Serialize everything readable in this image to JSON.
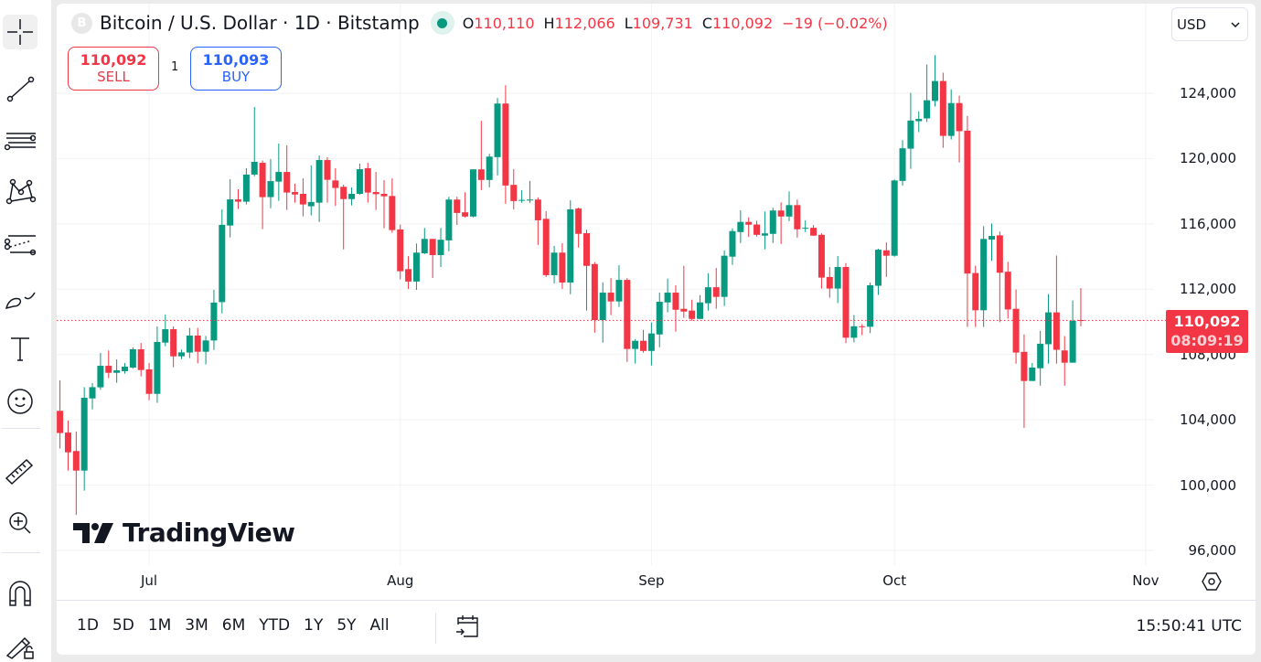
{
  "header": {
    "symbol_icon_letter": "B",
    "title": "Bitcoin / U.S. Dollar · 1D · Bitstamp",
    "ohlc": {
      "o_label": "O",
      "o": "110,110",
      "h_label": "H",
      "h": "112,066",
      "l_label": "L",
      "l": "109,731",
      "c_label": "C",
      "c": "110,092",
      "change": "−19 (−0.02%)"
    }
  },
  "trade": {
    "sell_price": "110,092",
    "sell_label": "SELL",
    "spread": "1",
    "buy_price": "110,093",
    "buy_label": "BUY"
  },
  "currency": {
    "selected": "USD"
  },
  "last_price": {
    "price": "110,092",
    "countdown": "08:09:19"
  },
  "logo_text": "TradingView",
  "toolbar": {
    "tools": [
      "crosshair-icon",
      "trend-line-icon",
      "fib-retracement-icon",
      "pattern-icon",
      "parallel-channel-icon",
      "brush-icon",
      "text-icon",
      "emoji-icon",
      "ruler-icon",
      "zoom-in-icon",
      "magnet-icon",
      "lock-drawings-icon"
    ]
  },
  "bottom_bar": {
    "ranges": [
      "1D",
      "5D",
      "1M",
      "3M",
      "6M",
      "YTD",
      "1Y",
      "5Y",
      "All"
    ],
    "clock": "15:50:41 UTC"
  },
  "colors": {
    "up": "#089981",
    "down": "#f23645",
    "buy": "#2962ff"
  },
  "chart_data": {
    "type": "candlestick",
    "title": "Bitcoin / U.S. Dollar · 1D · Bitstamp",
    "grid": true,
    "ylim": [
      95100,
      129500
    ],
    "y_ticks": [
      {
        "v": 124000,
        "label": "124,000"
      },
      {
        "v": 120000,
        "label": "120,000"
      },
      {
        "v": 116000,
        "label": "116,000"
      },
      {
        "v": 112000,
        "label": "112,000"
      },
      {
        "v": 108000,
        "label": "108,000"
      },
      {
        "v": 104000,
        "label": "104,000"
      },
      {
        "v": 100000,
        "label": "100,000"
      },
      {
        "v": 96000,
        "label": "96,000"
      }
    ],
    "x_ticks": [
      {
        "date": "07-01",
        "label": "Jul"
      },
      {
        "date": "08-01",
        "label": "Aug"
      },
      {
        "date": "09-01",
        "label": "Sep"
      },
      {
        "date": "10-01",
        "label": "Oct"
      },
      {
        "date": "11-01",
        "label": "Nov"
      }
    ],
    "last_price": 110092,
    "columns": [
      "date",
      "open",
      "high",
      "low",
      "close"
    ],
    "candles": [
      [
        "06-20",
        104550,
        106420,
        102240,
        103190
      ],
      [
        "06-21",
        103220,
        103950,
        100890,
        102010
      ],
      [
        "06-22",
        102090,
        103280,
        98170,
        100890
      ],
      [
        "06-23",
        100890,
        106000,
        99660,
        105350
      ],
      [
        "06-24",
        105310,
        106250,
        104640,
        106000
      ],
      [
        "06-25",
        105990,
        108100,
        105840,
        107310
      ],
      [
        "06-26",
        107310,
        108250,
        106550,
        106880
      ],
      [
        "06-27",
        106880,
        107700,
        106270,
        107030
      ],
      [
        "06-28",
        106980,
        107480,
        106830,
        107260
      ],
      [
        "06-29",
        107200,
        108430,
        107140,
        108320
      ],
      [
        "06-30",
        108320,
        108710,
        106660,
        107050
      ],
      [
        "07-01",
        107090,
        107480,
        105200,
        105590
      ],
      [
        "07-02",
        105590,
        109720,
        105040,
        108770
      ],
      [
        "07-03",
        108730,
        110450,
        108510,
        109550
      ],
      [
        "07-04",
        109550,
        109720,
        107220,
        107890
      ],
      [
        "07-05",
        107890,
        108300,
        107720,
        108130
      ],
      [
        "07-06",
        108120,
        109630,
        107780,
        109160
      ],
      [
        "07-07",
        109160,
        109630,
        107460,
        108170
      ],
      [
        "07-08",
        108170,
        109140,
        107390,
        108860
      ],
      [
        "07-09",
        108860,
        111960,
        108280,
        111180
      ],
      [
        "07-10",
        111210,
        116890,
        110520,
        115940
      ],
      [
        "07-11",
        115900,
        118740,
        115170,
        117500
      ],
      [
        "07-12",
        117500,
        118120,
        116910,
        117360
      ],
      [
        "07-13",
        117360,
        119410,
        117190,
        119020
      ],
      [
        "07-14",
        119020,
        123160,
        118920,
        119800
      ],
      [
        "07-15",
        119740,
        119880,
        115680,
        117640
      ],
      [
        "07-16",
        117640,
        119970,
        116960,
        118620
      ],
      [
        "07-17",
        118590,
        120920,
        117410,
        119180
      ],
      [
        "07-18",
        119180,
        120810,
        116850,
        117920
      ],
      [
        "07-19",
        117950,
        118460,
        117300,
        117800
      ],
      [
        "07-20",
        117840,
        118790,
        116460,
        117190
      ],
      [
        "07-21",
        117080,
        119580,
        116520,
        117340
      ],
      [
        "07-22",
        117300,
        120190,
        116120,
        119910
      ],
      [
        "07-23",
        119910,
        120080,
        117300,
        118700
      ],
      [
        "07-24",
        118660,
        119410,
        117110,
        118200
      ],
      [
        "07-25",
        118270,
        118400,
        114440,
        117520
      ],
      [
        "07-26",
        117520,
        118230,
        117130,
        117840
      ],
      [
        "07-27",
        117840,
        119690,
        117780,
        119350
      ],
      [
        "07-28",
        119410,
        119740,
        117300,
        117920
      ],
      [
        "07-29",
        117950,
        119180,
        116850,
        117820
      ],
      [
        "07-30",
        117840,
        118680,
        115730,
        117690
      ],
      [
        "07-31",
        117710,
        118790,
        115450,
        115620
      ],
      [
        "08-01",
        115660,
        115960,
        112600,
        113100
      ],
      [
        "08-02",
        113230,
        114020,
        112020,
        112470
      ],
      [
        "08-03",
        112470,
        114800,
        111960,
        114240
      ],
      [
        "08-04",
        114200,
        115750,
        114150,
        115080
      ],
      [
        "08-05",
        115080,
        115080,
        112690,
        114090
      ],
      [
        "08-06",
        114090,
        115750,
        113360,
        115030
      ],
      [
        "08-07",
        114990,
        117660,
        114320,
        117490
      ],
      [
        "08-08",
        117490,
        117660,
        115940,
        116670
      ],
      [
        "08-09",
        116710,
        117940,
        116390,
        116450
      ],
      [
        "08-10",
        116450,
        119340,
        116400,
        119340
      ],
      [
        "08-11",
        119340,
        122310,
        118070,
        118690
      ],
      [
        "08-12",
        118690,
        120290,
        118240,
        120120
      ],
      [
        "08-13",
        120090,
        123710,
        118970,
        123370
      ],
      [
        "08-14",
        123370,
        124490,
        117230,
        118350
      ],
      [
        "08-15",
        118390,
        119360,
        116890,
        117400
      ],
      [
        "08-16",
        117470,
        118070,
        117290,
        117470
      ],
      [
        "08-17",
        117430,
        118630,
        117290,
        117490
      ],
      [
        "08-18",
        117490,
        117620,
        114710,
        116220
      ],
      [
        "08-19",
        116310,
        116780,
        112750,
        112860
      ],
      [
        "08-20",
        112860,
        114650,
        112360,
        114240
      ],
      [
        "08-21",
        114240,
        114820,
        112020,
        112410
      ],
      [
        "08-22",
        112410,
        117450,
        111690,
        116890
      ],
      [
        "08-23",
        116940,
        117000,
        114550,
        115390
      ],
      [
        "08-24",
        115430,
        115650,
        110690,
        113430
      ],
      [
        "08-25",
        113540,
        113660,
        109340,
        110110
      ],
      [
        "08-26",
        110110,
        112420,
        108730,
        111790
      ],
      [
        "08-27",
        111790,
        112680,
        110410,
        111250
      ],
      [
        "08-28",
        111250,
        113470,
        110910,
        112570
      ],
      [
        "08-29",
        112570,
        112680,
        107550,
        108340
      ],
      [
        "08-30",
        108340,
        108950,
        107440,
        108840
      ],
      [
        "08-31",
        108840,
        109510,
        108110,
        108220
      ],
      [
        "09-01",
        108220,
        109960,
        107330,
        109290
      ],
      [
        "09-02",
        109230,
        111790,
        108450,
        111230
      ],
      [
        "09-03",
        111190,
        112650,
        110580,
        111790
      ],
      [
        "09-04",
        111790,
        112240,
        109400,
        110740
      ],
      [
        "09-05",
        110800,
        113430,
        110240,
        110630
      ],
      [
        "09-06",
        110690,
        111360,
        110070,
        110180
      ],
      [
        "09-07",
        110180,
        111640,
        110180,
        111190
      ],
      [
        "09-08",
        111140,
        112980,
        110690,
        112120
      ],
      [
        "09-09",
        112120,
        113300,
        110800,
        111530
      ],
      [
        "09-10",
        111530,
        114380,
        110970,
        114050
      ],
      [
        "09-11",
        113990,
        115730,
        113490,
        115560
      ],
      [
        "09-12",
        115500,
        116830,
        114830,
        116120
      ],
      [
        "09-13",
        116120,
        116400,
        115200,
        115950
      ],
      [
        "09-14",
        115960,
        116190,
        115220,
        115330
      ],
      [
        "09-15",
        115280,
        116760,
        114440,
        115420
      ],
      [
        "09-16",
        115390,
        116990,
        114830,
        116820
      ],
      [
        "09-17",
        116820,
        117320,
        114770,
        116450
      ],
      [
        "09-18",
        116450,
        117990,
        116170,
        117150
      ],
      [
        "09-19",
        117150,
        117490,
        115160,
        115670
      ],
      [
        "09-20",
        115760,
        116210,
        115500,
        115760
      ],
      [
        "09-21",
        115760,
        115930,
        115280,
        115280
      ],
      [
        "09-22",
        115330,
        115420,
        112040,
        112710
      ],
      [
        "09-23",
        112750,
        113360,
        111480,
        112040
      ],
      [
        "09-24",
        112040,
        114030,
        111150,
        113360
      ],
      [
        "09-25",
        113360,
        113600,
        108690,
        109030
      ],
      [
        "09-26",
        109030,
        110420,
        108750,
        109730
      ],
      [
        "09-27",
        109730,
        109860,
        109190,
        109680
      ],
      [
        "09-28",
        109700,
        112410,
        109310,
        112240
      ],
      [
        "09-29",
        112210,
        114480,
        111650,
        114420
      ],
      [
        "09-30",
        114380,
        114870,
        112750,
        114050
      ],
      [
        "10-01",
        114050,
        118720,
        113990,
        118660
      ],
      [
        "10-02",
        118630,
        121130,
        118340,
        120630
      ],
      [
        "10-03",
        120610,
        124020,
        119370,
        122330
      ],
      [
        "10-04",
        122290,
        122890,
        121620,
        122430
      ],
      [
        "10-05",
        122460,
        125760,
        122240,
        123570
      ],
      [
        "10-06",
        123530,
        126330,
        123190,
        124750
      ],
      [
        "10-07",
        124750,
        125260,
        120660,
        121390
      ],
      [
        "10-08",
        121390,
        124240,
        121170,
        123400
      ],
      [
        "10-09",
        123400,
        123850,
        119760,
        121680
      ],
      [
        "10-10",
        121710,
        122610,
        109690,
        112960
      ],
      [
        "10-11",
        112990,
        113440,
        109690,
        110710
      ],
      [
        "10-12",
        110710,
        115860,
        109690,
        115080
      ],
      [
        "10-13",
        115040,
        116030,
        113740,
        115260
      ],
      [
        "10-14",
        115300,
        115530,
        109980,
        113010
      ],
      [
        "10-15",
        113070,
        113670,
        110200,
        110760
      ],
      [
        "10-16",
        110800,
        111980,
        107440,
        108120
      ],
      [
        "10-17",
        108160,
        109230,
        103510,
        106380
      ],
      [
        "10-18",
        106380,
        107480,
        106380,
        107200
      ],
      [
        "10-19",
        107160,
        109450,
        106090,
        108660
      ],
      [
        "10-20",
        108630,
        111700,
        107440,
        110580
      ],
      [
        "10-21",
        110580,
        114060,
        107440,
        108290
      ],
      [
        "10-22",
        108250,
        109130,
        106090,
        107500
      ],
      [
        "10-23",
        107500,
        111310,
        107500,
        110070
      ],
      [
        "10-24",
        110110,
        112066,
        109731,
        110092
      ]
    ]
  }
}
